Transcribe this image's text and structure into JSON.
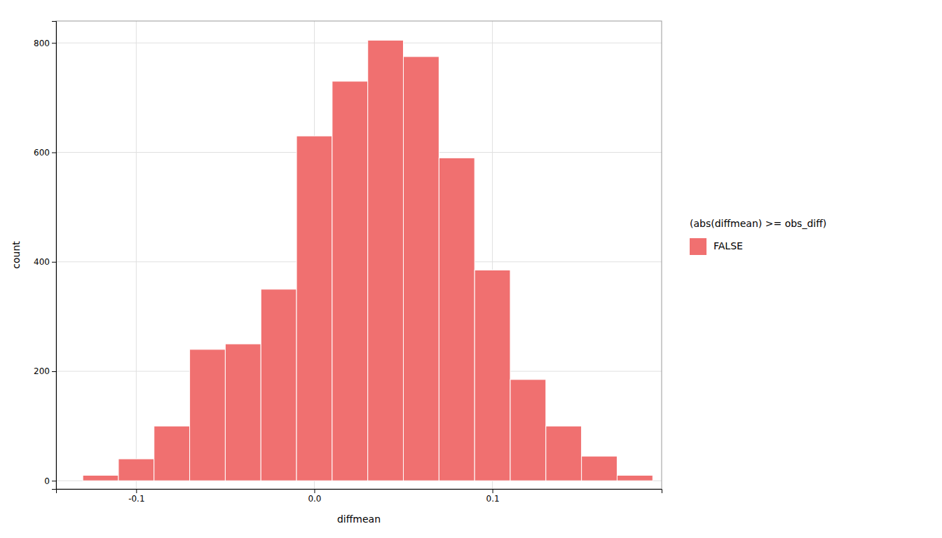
{
  "chart_data": {
    "type": "histogram",
    "xlabel": "diffmean",
    "ylabel": "count",
    "bins": [
      -0.13,
      -0.11,
      -0.09,
      -0.07,
      -0.05,
      -0.03,
      -0.01,
      0.01,
      0.03,
      0.05,
      0.07,
      0.09,
      0.11,
      0.13,
      0.15,
      0.17,
      0.19
    ],
    "series": [
      {
        "name": "FALSE",
        "color": "#F07070",
        "values": [
          10,
          40,
          100,
          240,
          250,
          350,
          630,
          730,
          805,
          775,
          590,
          385,
          185,
          100,
          45,
          10
        ]
      }
    ],
    "xlim": [
      -0.145,
      0.195
    ],
    "ylim": [
      -15,
      840
    ],
    "xticks": [
      -0.1,
      {
        "value": 0.0,
        "label": "0.0"
      },
      0.1
    ],
    "yticks": [
      0,
      200,
      400,
      600,
      800
    ],
    "grid": true,
    "legend": "right",
    "legend_title": "(abs(diffmean) >= obs_diff)"
  }
}
